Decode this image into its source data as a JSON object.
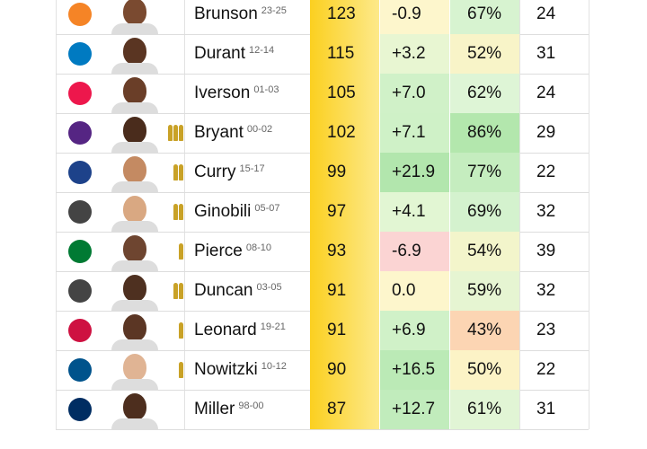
{
  "table": {
    "rows": [
      {
        "name": "Brunson",
        "years": "23-25",
        "score": "123",
        "diff": "-0.9",
        "pct": "67%",
        "last": "24",
        "titles": 0
      },
      {
        "name": "Durant",
        "years": "12-14",
        "score": "115",
        "diff": "+3.2",
        "pct": "52%",
        "last": "31",
        "titles": 0
      },
      {
        "name": "Iverson",
        "years": "01-03",
        "score": "105",
        "diff": "+7.0",
        "pct": "62%",
        "last": "24",
        "titles": 0
      },
      {
        "name": "Bryant",
        "years": "00-02",
        "score": "102",
        "diff": "+7.1",
        "pct": "86%",
        "last": "29",
        "titles": 3
      },
      {
        "name": "Curry",
        "years": "15-17",
        "score": "99",
        "diff": "+21.9",
        "pct": "77%",
        "last": "22",
        "titles": 2
      },
      {
        "name": "Ginobili",
        "years": "05-07",
        "score": "97",
        "diff": "+4.1",
        "pct": "69%",
        "last": "32",
        "titles": 2
      },
      {
        "name": "Pierce",
        "years": "08-10",
        "score": "93",
        "diff": "-6.9",
        "pct": "54%",
        "last": "39",
        "titles": 1
      },
      {
        "name": "Duncan",
        "years": "03-05",
        "score": "91",
        "diff": "0.0",
        "pct": "59%",
        "last": "32",
        "titles": 2
      },
      {
        "name": "Leonard",
        "years": "19-21",
        "score": "91",
        "diff": "+6.9",
        "pct": "43%",
        "last": "23",
        "titles": 1
      },
      {
        "name": "Nowitzki",
        "years": "10-12",
        "score": "90",
        "diff": "+16.5",
        "pct": "50%",
        "last": "22",
        "titles": 1
      },
      {
        "name": "Miller",
        "years": "98-00",
        "score": "87",
        "diff": "+12.7",
        "pct": "61%",
        "last": "31",
        "titles": 0
      }
    ]
  }
}
